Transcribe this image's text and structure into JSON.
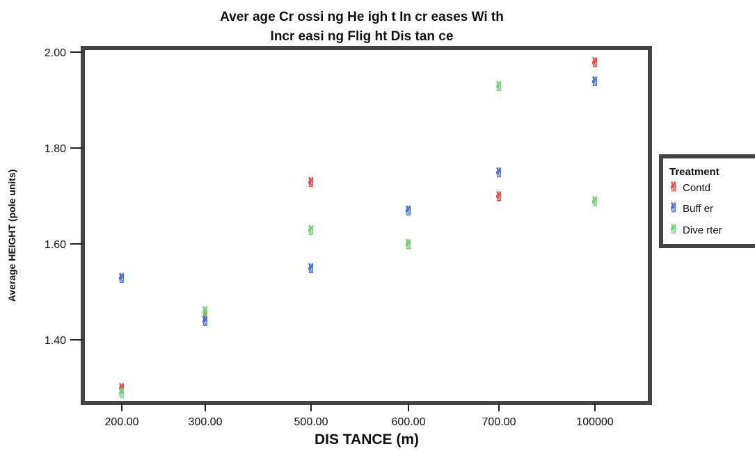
{
  "chart_data": {
    "type": "scatter",
    "title_line1": "Aver age Cr ossi ng He igh t In cr eases Wi th",
    "title_line2": "Incr easi ng Flig ht Dis tan ce",
    "xlabel": "DIS TANCE (m)",
    "ylabel": "Average HEIGHT (pole units)",
    "categories": [
      "200.00",
      "300.00",
      "500.00",
      "600.00",
      "700.00",
      "100000"
    ],
    "y_ticks": [
      "1.40",
      "1.60",
      "1.80",
      "2.00"
    ],
    "ylim": [
      1.25,
      2.01
    ],
    "grid": false,
    "legend": {
      "title": "Treatment",
      "placement": "right"
    },
    "series": [
      {
        "name": "Contd",
        "color": "#e84a4a",
        "values": [
          1.3,
          1.45,
          1.73,
          1.6,
          1.7,
          1.98
        ]
      },
      {
        "name": "Buff er",
        "color": "#4a6fd6",
        "values": [
          1.53,
          1.44,
          1.55,
          1.67,
          1.75,
          1.94
        ]
      },
      {
        "name": "Dive rter",
        "color": "#74d27a",
        "values": [
          1.29,
          1.46,
          1.63,
          1.6,
          1.93,
          1.69
        ]
      }
    ],
    "marker_icon": "victory-hand-icon"
  }
}
